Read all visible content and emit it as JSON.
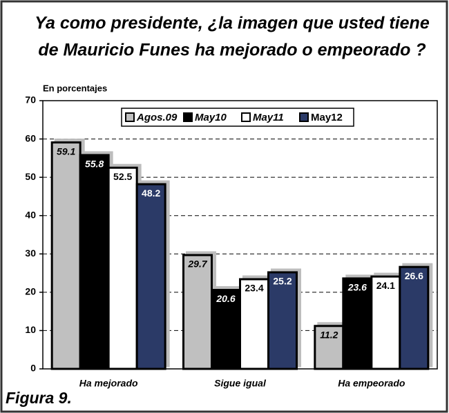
{
  "chart_data": {
    "type": "bar",
    "title": [
      "Ya como presidente, ¿la imagen que usted tiene",
      "de Mauricio  Funes ha mejorado o empeorado ?"
    ],
    "ylabel": "En porcentajes",
    "caption": "Figura 9.",
    "categories": [
      "Ha mejorado",
      "Sigue igual",
      "Ha empeorado"
    ],
    "series": [
      {
        "name": "Agos.09",
        "color": "#c0c0c0",
        "values": [
          59.1,
          29.7,
          11.2
        ]
      },
      {
        "name": "May10",
        "color": "#000000",
        "values": [
          55.8,
          20.6,
          23.6
        ]
      },
      {
        "name": "May11",
        "color": "#ffffff",
        "values": [
          52.5,
          23.4,
          24.1
        ]
      },
      {
        "name": "May12",
        "color": "#2b3a67",
        "values": [
          48.2,
          25.2,
          26.6
        ]
      }
    ],
    "ylim": [
      0,
      70
    ],
    "yticks": [
      0,
      10,
      20,
      30,
      40,
      50,
      60,
      70
    ],
    "grid": true,
    "legend": "top"
  }
}
